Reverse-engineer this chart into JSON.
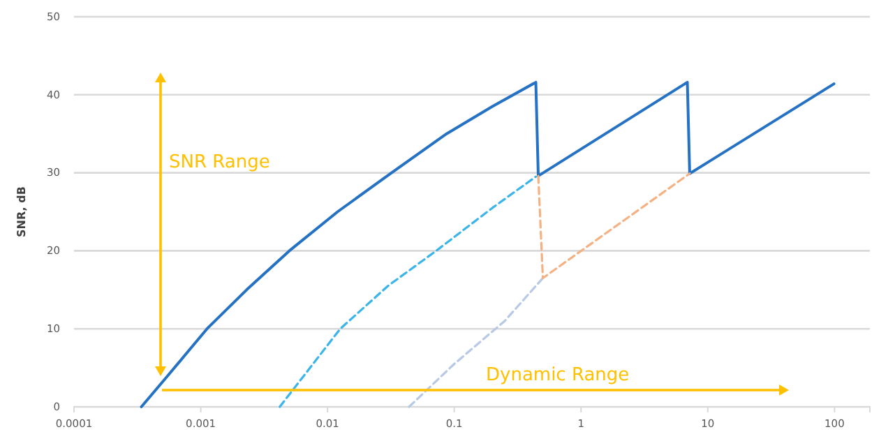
{
  "chart_data": {
    "type": "line",
    "ylabel": "SNR, dB",
    "log": "x",
    "grid": "y",
    "marker": "none",
    "xlim": [
      0.0001,
      190
    ],
    "xticks": [
      0.0001,
      0.001,
      0.01,
      0.1,
      1,
      10,
      100
    ],
    "ylim": [
      0,
      50
    ],
    "yticks": [
      0,
      10,
      20,
      30,
      40,
      50
    ],
    "series": [
      {
        "color": "#2572c4",
        "line_style": "solid",
        "x": [
          0.00034,
          0.00055,
          0.00112,
          0.0023,
          0.005,
          0.012,
          0.032,
          0.087,
          0.2,
          0.44,
          0.46,
          6.9,
          7.2,
          99
        ],
        "values": [
          0,
          4,
          10,
          15,
          20,
          25,
          30,
          35,
          38.5,
          41.6,
          29.6,
          41.6,
          29.9,
          41.4
        ]
      },
      {
        "color": "#3bb4ea",
        "line_style": "dashed",
        "x": [
          0.0042,
          0.0126,
          0.03,
          0.072,
          0.2,
          0.44
        ],
        "values": [
          0,
          10,
          15.5,
          20,
          25.5,
          29.5
        ]
      },
      {
        "color": "#b7c9e4",
        "line_style": "dashed",
        "x": [
          0.044,
          0.1,
          0.25,
          0.5
        ],
        "values": [
          0,
          5.5,
          11,
          16.5
        ]
      },
      {
        "color": "#f4b183",
        "line_style": "dashed",
        "x": [
          0.46,
          0.5,
          7.2
        ],
        "values": [
          29.6,
          16.5,
          29.9
        ]
      }
    ],
    "annotations": [
      "SNR Range",
      "Dynamic Range"
    ]
  }
}
